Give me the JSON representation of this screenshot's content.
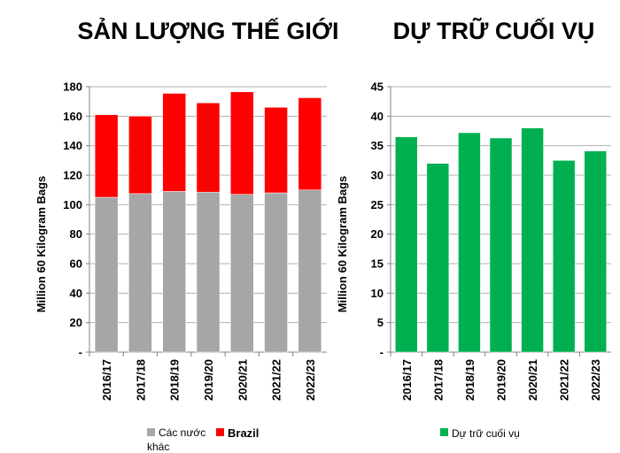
{
  "chart_data": [
    {
      "type": "bar",
      "stacked": true,
      "title": "SẢN LƯỢNG THẾ GIỚI",
      "ylabel": "Million 60 Kilogram Bags",
      "ylim": [
        0,
        180
      ],
      "yticks": [
        "-",
        "20",
        "40",
        "60",
        "80",
        "100",
        "120",
        "140",
        "160",
        "180"
      ],
      "categories": [
        "2016/17",
        "2017/18",
        "2018/19",
        "2019/20",
        "2020/21",
        "2021/22",
        "2022/23"
      ],
      "series": [
        {
          "name": "Các nước khác",
          "color": "#a6a6a6",
          "values": [
            105,
            107.5,
            109,
            108.5,
            107,
            108,
            110
          ]
        },
        {
          "name": "Brazil",
          "color": "#ff0000",
          "values": [
            56,
            52.5,
            66.5,
            60.5,
            69.5,
            58,
            62.5
          ]
        }
      ],
      "legend": {
        "position": "bottom",
        "labels": [
          "Các nước",
          "khác",
          "Brazil"
        ]
      },
      "grid": true
    },
    {
      "type": "bar",
      "title": "DỰ TRỮ CUỐI VỤ",
      "ylabel": "Million 60 Kilogram Bags",
      "ylim": [
        0,
        45
      ],
      "yticks": [
        "-",
        "5",
        "10",
        "15",
        "20",
        "25",
        "30",
        "35",
        "40",
        "45"
      ],
      "categories": [
        "2016/17",
        "2017/18",
        "2018/19",
        "2019/20",
        "2020/21",
        "2021/22",
        "2022/23"
      ],
      "series": [
        {
          "name": "Dự trữ cuối vụ",
          "color": "#00b050",
          "values": [
            36.5,
            32,
            37.2,
            36.3,
            38,
            32.5,
            34.1
          ]
        }
      ],
      "legend": {
        "position": "bottom"
      },
      "grid": true
    }
  ]
}
